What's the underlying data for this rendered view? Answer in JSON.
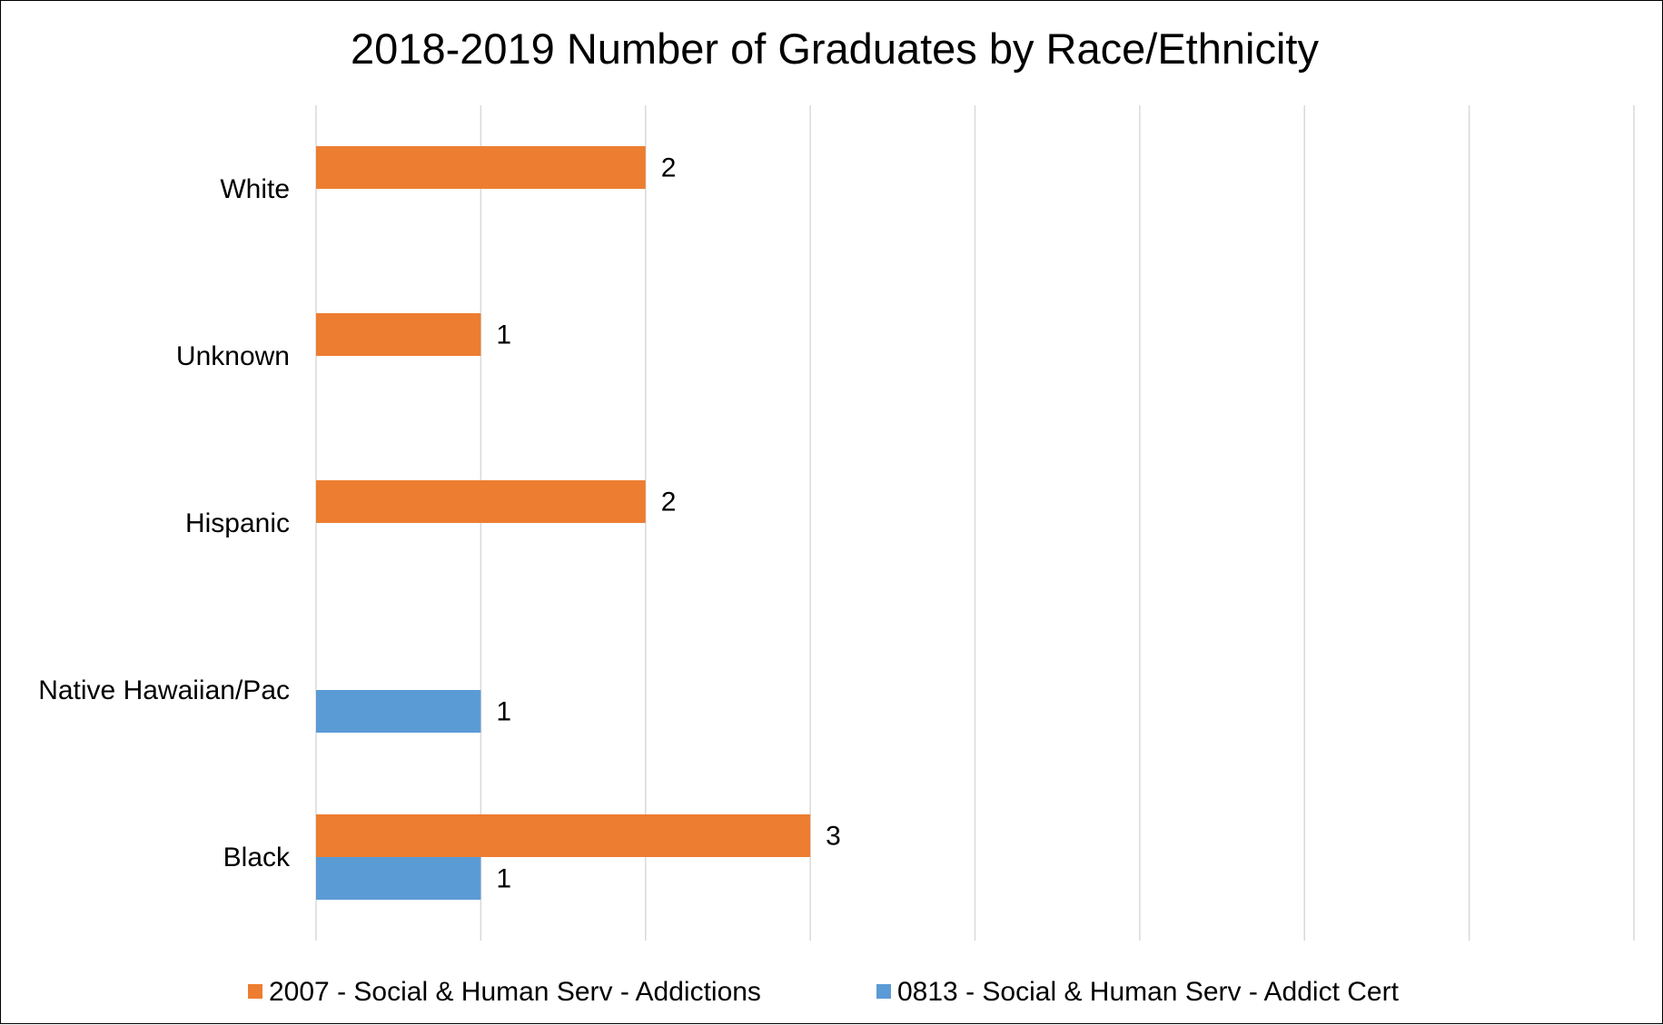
{
  "chart_data": {
    "type": "bar",
    "orientation": "horizontal",
    "title": "2018-2019 Number of Graduates by Race/Ethnicity",
    "categories": [
      "White",
      "Unknown",
      "Hispanic",
      "Native Hawaiian/Pac",
      "Black"
    ],
    "series": [
      {
        "name": "2007 - Social & Human Serv - Addictions",
        "color": "#ED7D31",
        "values": [
          2,
          1,
          2,
          null,
          3
        ]
      },
      {
        "name": "0813 - Social & Human Serv - Addict Cert",
        "color": "#5B9BD5",
        "values": [
          null,
          null,
          null,
          1,
          1
        ]
      }
    ],
    "xlim": [
      0,
      8
    ],
    "grid": true,
    "gridline_color": "#D9D9D9",
    "data_labels": true,
    "legend_position": "bottom"
  }
}
